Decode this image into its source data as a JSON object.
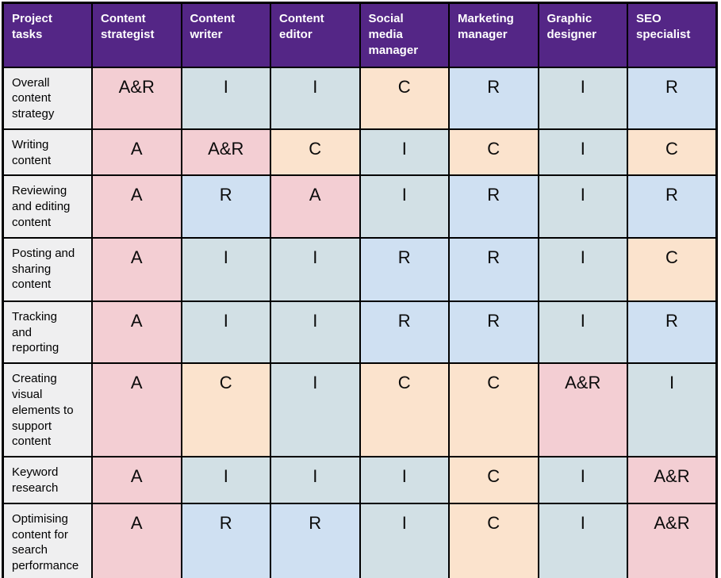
{
  "chart_data": {
    "type": "table",
    "description": "RACI responsibility matrix for content project tasks",
    "columns": [
      "Project tasks",
      "Content strategist",
      "Content writer",
      "Content editor",
      "Social media manager",
      "Marketing manager",
      "Graphic designer",
      "SEO specialist"
    ],
    "rows": [
      {
        "task": "Overall content strategy",
        "values": [
          "A&R",
          "I",
          "I",
          "C",
          "R",
          "I",
          "R"
        ]
      },
      {
        "task": "Writing content",
        "values": [
          "A",
          "A&R",
          "C",
          "I",
          "C",
          "I",
          "C"
        ]
      },
      {
        "task": "Reviewing and editing content",
        "values": [
          "A",
          "R",
          "A",
          "I",
          "R",
          "I",
          "R"
        ]
      },
      {
        "task": "Posting and sharing content",
        "values": [
          "A",
          "I",
          "I",
          "R",
          "R",
          "I",
          "C"
        ]
      },
      {
        "task": "Tracking and reporting",
        "values": [
          "A",
          "I",
          "I",
          "R",
          "R",
          "I",
          "R"
        ]
      },
      {
        "task": "Creating visual elements to support content",
        "values": [
          "A",
          "C",
          "I",
          "C",
          "C",
          "A&R",
          "I"
        ]
      },
      {
        "task": "Keyword research",
        "values": [
          "A",
          "I",
          "I",
          "I",
          "C",
          "I",
          "A&R"
        ]
      },
      {
        "task": "Optimising content for search performance",
        "values": [
          "A",
          "R",
          "R",
          "I",
          "C",
          "I",
          "A&R"
        ]
      }
    ],
    "value_colors": {
      "A": "#f3ced3",
      "A&R": "#f3ced3",
      "R": "#cfe0f2",
      "C": "#fbe3cd",
      "I": "#d2e0e5"
    },
    "colors": {
      "header_bg": "#542686",
      "header_text": "#ffffff",
      "task_bg": "#efeff0",
      "border": "#000000",
      "page_bg": "#ffffff"
    }
  }
}
